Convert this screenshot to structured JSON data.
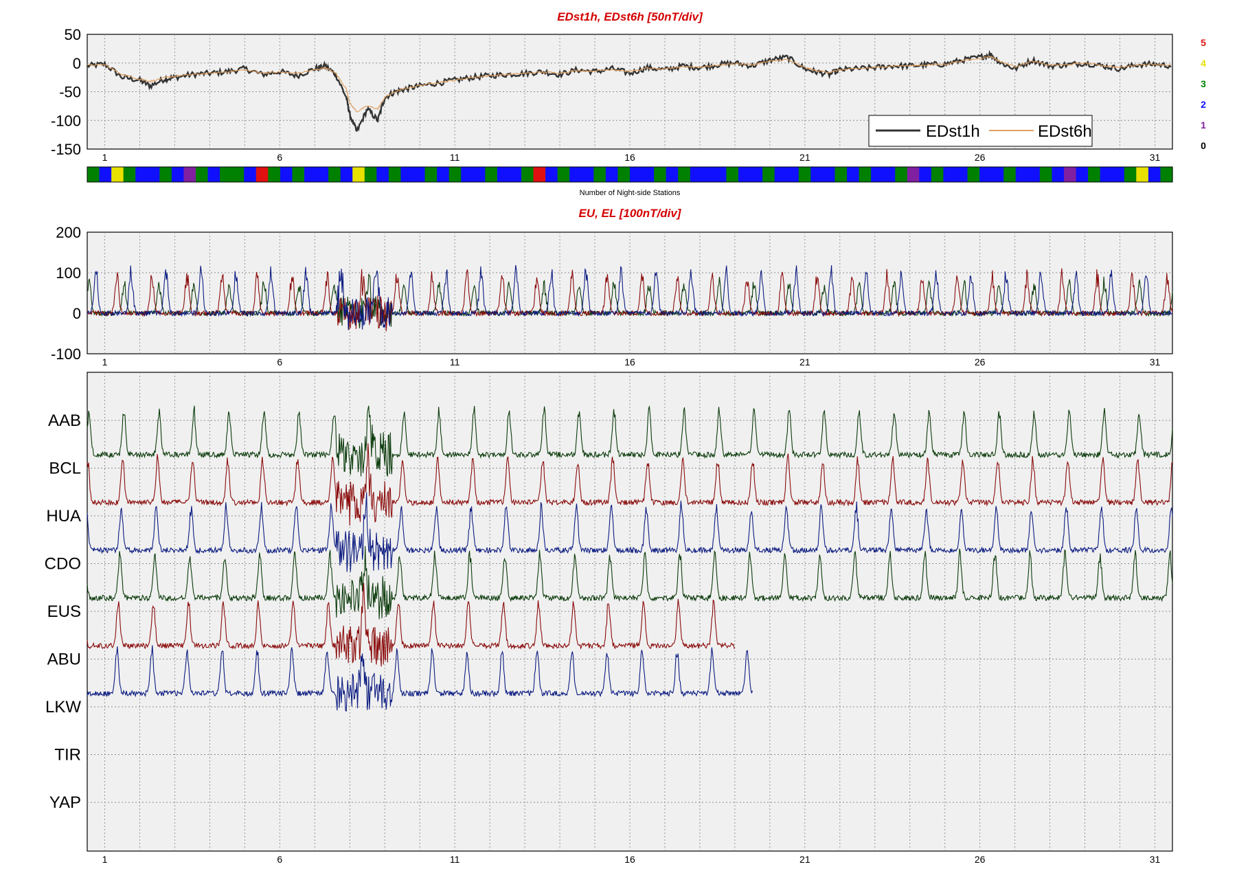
{
  "titles": {
    "dst": "EDst1h, EDst6h [50nT/div]",
    "eu": "EU, EL   [100nT/div]",
    "bar": "Number of Night-side Stations"
  },
  "x_ticks": [
    "1",
    "6",
    "11",
    "16",
    "21",
    "26",
    "31"
  ],
  "count_legend": [
    {
      "label": "5",
      "color": "#e01010"
    },
    {
      "label": "4",
      "color": "#e8e000"
    },
    {
      "label": "3",
      "color": "#008000"
    },
    {
      "label": "2",
      "color": "#1010ff"
    },
    {
      "label": "1",
      "color": "#8020a0"
    },
    {
      "label": "0",
      "color": "#000000"
    }
  ],
  "stations": [
    "AAB",
    "BCL",
    "HUA",
    "CDO",
    "EUS",
    "ABU",
    "LKW",
    "TIR",
    "YAP"
  ],
  "chart_data": [
    {
      "type": "line",
      "title": "EDst1h, EDst6h [50nT/div]",
      "xlim": [
        0.5,
        31.5
      ],
      "ylim": [
        -150,
        50
      ],
      "y_ticks": [
        "50",
        "0",
        "-50",
        "-100",
        "-150"
      ],
      "legend": "bottom-right",
      "grid": true,
      "series": [
        {
          "name": "EDst1h",
          "color": "#333333",
          "x": [
            0.5,
            1.0,
            1.5,
            2.0,
            2.3,
            2.7,
            3.0,
            3.5,
            4.0,
            4.5,
            5.0,
            5.5,
            6.0,
            6.5,
            7.0,
            7.3,
            7.6,
            7.9,
            8.0,
            8.2,
            8.5,
            8.8,
            9.0,
            9.3,
            9.6,
            10.0,
            10.5,
            11.0,
            11.5,
            12.0,
            12.5,
            13.0,
            13.5,
            14.0,
            14.5,
            15.0,
            15.5,
            16.0,
            16.5,
            17.0,
            17.5,
            18.0,
            18.5,
            19.0,
            19.5,
            20.0,
            20.5,
            21.0,
            21.3,
            21.7,
            22.0,
            22.5,
            23.0,
            23.5,
            24.0,
            24.5,
            25.0,
            25.5,
            26.0,
            26.3,
            26.6,
            27.0,
            27.5,
            28.0,
            28.5,
            29.0,
            29.5,
            30.0,
            30.5,
            31.0,
            31.5
          ],
          "y": [
            -5,
            -2,
            -25,
            -30,
            -40,
            -28,
            -25,
            -20,
            -18,
            -15,
            -10,
            -20,
            -15,
            -22,
            -10,
            -5,
            -20,
            -60,
            -90,
            -120,
            -80,
            -100,
            -60,
            -50,
            -45,
            -40,
            -35,
            -30,
            -25,
            -22,
            -20,
            -18,
            -15,
            -20,
            -12,
            -15,
            -10,
            -18,
            -8,
            -12,
            -5,
            -8,
            -3,
            0,
            -5,
            5,
            10,
            -10,
            -15,
            -20,
            -12,
            -10,
            -8,
            -5,
            -5,
            -3,
            -2,
            5,
            10,
            15,
            0,
            -10,
            5,
            -5,
            -3,
            0,
            -5,
            -10,
            -3,
            -2,
            -5
          ]
        },
        {
          "name": "EDst6h",
          "color": "#e0a060",
          "x": [
            0.5,
            1.0,
            1.5,
            2.0,
            2.3,
            2.7,
            3.0,
            3.5,
            4.0,
            4.5,
            5.0,
            5.5,
            6.0,
            6.5,
            7.0,
            7.3,
            7.6,
            7.9,
            8.0,
            8.2,
            8.5,
            8.8,
            9.0,
            9.3,
            9.6,
            10.0,
            10.5,
            11.0,
            11.5,
            12.0,
            12.5,
            13.0,
            13.5,
            14.0,
            14.5,
            15.0,
            15.5,
            16.0,
            16.5,
            17.0,
            17.5,
            18.0,
            18.5,
            19.0,
            19.5,
            20.0,
            20.5,
            21.0,
            21.3,
            21.7,
            22.0,
            22.5,
            23.0,
            23.5,
            24.0,
            24.5,
            25.0,
            25.5,
            26.0,
            26.3,
            26.6,
            27.0,
            27.5,
            28.0,
            28.5,
            29.0,
            29.5,
            30.0,
            30.5,
            31.0,
            31.5
          ],
          "y": [
            -4,
            -3,
            -20,
            -28,
            -32,
            -26,
            -23,
            -20,
            -18,
            -15,
            -12,
            -17,
            -16,
            -18,
            -12,
            -8,
            -18,
            -45,
            -70,
            -85,
            -75,
            -80,
            -60,
            -50,
            -44,
            -39,
            -34,
            -30,
            -25,
            -22,
            -20,
            -18,
            -16,
            -17,
            -13,
            -14,
            -11,
            -15,
            -9,
            -11,
            -6,
            -7,
            -4,
            -1,
            -3,
            3,
            6,
            -8,
            -13,
            -16,
            -12,
            -10,
            -8,
            -5,
            -5,
            -3,
            -2,
            4,
            8,
            12,
            2,
            -6,
            3,
            -4,
            -3,
            0,
            -4,
            -8,
            -3,
            -2,
            -4
          ]
        }
      ]
    },
    {
      "type": "heatmap",
      "title": "Number of Night-side Stations",
      "xlim": [
        0.5,
        31.5
      ],
      "values": [
        3,
        2,
        4,
        3,
        2,
        2,
        3,
        2,
        1,
        3,
        2,
        3,
        3,
        2,
        5,
        3,
        2,
        3,
        2,
        2,
        3,
        2,
        4,
        3,
        2,
        3,
        2,
        2,
        3,
        2,
        3,
        2,
        2,
        3,
        2,
        2,
        3,
        5,
        2,
        3,
        2,
        2,
        3,
        2,
        3,
        2,
        2,
        3,
        2,
        3,
        2,
        2,
        2,
        3,
        2,
        2,
        3,
        2,
        2,
        3,
        2,
        2,
        3,
        2,
        3,
        2,
        2,
        3,
        1,
        2,
        3,
        2,
        2,
        3,
        2,
        2,
        3,
        2,
        2,
        3,
        2,
        1,
        2,
        3,
        2,
        2,
        3,
        4,
        2,
        3
      ]
    },
    {
      "type": "line",
      "title": "EU, EL   [100nT/div]",
      "xlim": [
        0.5,
        31.5
      ],
      "ylim": [
        -100,
        200
      ],
      "y_ticks": [
        "200",
        "100",
        "0",
        "-100"
      ],
      "grid": true,
      "description_series": [
        "EU/EL green",
        "EU/EL red",
        "EU/EL blue"
      ],
      "series": [
        {
          "name": "",
          "color": "#0a3a0a",
          "peak": 80,
          "phase": 0.55
        },
        {
          "name": "",
          "color": "#8a0a0a",
          "peak": 100,
          "phase": 0.35
        },
        {
          "name": "",
          "color": "#0a1a80",
          "peak": 110,
          "phase": 0.75
        }
      ]
    },
    {
      "type": "line",
      "title": "",
      "xlim": [
        0.5,
        31.5
      ],
      "categories": [
        "AAB",
        "BCL",
        "HUA",
        "CDO",
        "EUS",
        "ABU",
        "LKW",
        "TIR",
        "YAP"
      ],
      "series": [
        {
          "name": "AAB",
          "color": "#0a3a0a",
          "end": 31.5
        },
        {
          "name": "BCL",
          "color": "#8a0a0a",
          "end": 31.5
        },
        {
          "name": "HUA",
          "color": "#0a1a80",
          "end": 31.5
        },
        {
          "name": "CDO",
          "color": "#0a3a0a",
          "end": 31.5
        },
        {
          "name": "EUS",
          "color": "#8a0a0a",
          "end": 19.0
        },
        {
          "name": "ABU",
          "color": "#0a1a80",
          "end": 19.5
        },
        {
          "name": "LKW",
          "color": "#0a1a80",
          "end": 0
        },
        {
          "name": "TIR",
          "color": "#0a1a80",
          "end": 0
        },
        {
          "name": "YAP",
          "color": "#0a1a80",
          "end": 0
        }
      ]
    }
  ],
  "legend": {
    "edst1h": "EDst1h",
    "edst6h": "EDst6h"
  }
}
